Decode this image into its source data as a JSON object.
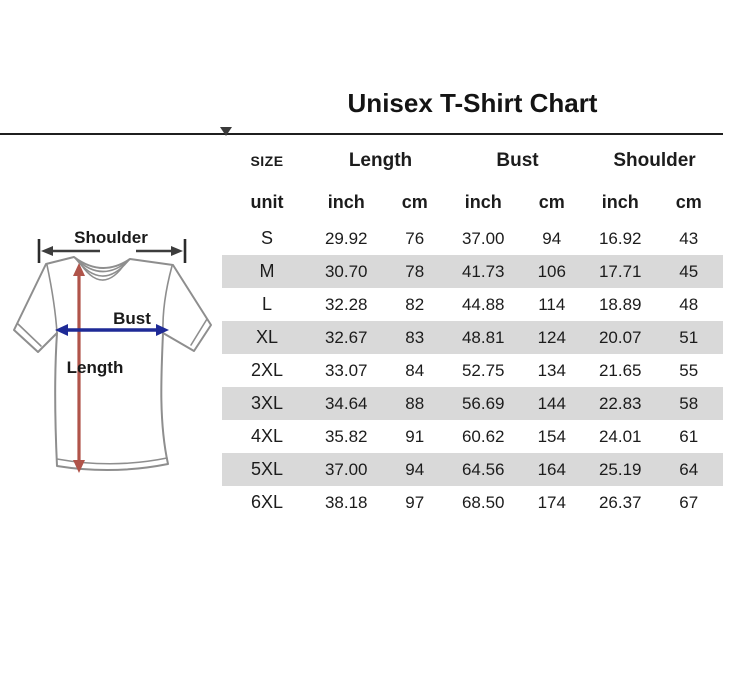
{
  "title": "Unisex T-Shirt Chart",
  "diagram": {
    "shoulder_label": "Shoulder",
    "bust_label": "Bust",
    "length_label": "Length",
    "arrow_colors": {
      "length": "#b0544a",
      "bust": "#1e2a96",
      "shoulder": "#3d3d3d"
    }
  },
  "table": {
    "zebra_color": "#d9d9d9",
    "column_groups": [
      {
        "label": "SIZE",
        "span": 1
      },
      {
        "label": "Length",
        "span": 2
      },
      {
        "label": "Bust",
        "span": 2
      },
      {
        "label": "Shoulder",
        "span": 2
      }
    ],
    "unit_row": [
      "unit",
      "inch",
      "cm",
      "inch",
      "cm",
      "inch",
      "cm"
    ],
    "rows": [
      {
        "size": "S",
        "values": [
          "29.92",
          "76",
          "37.00",
          "94",
          "16.92",
          "43"
        ]
      },
      {
        "size": "M",
        "values": [
          "30.70",
          "78",
          "41.73",
          "106",
          "17.71",
          "45"
        ]
      },
      {
        "size": "L",
        "values": [
          "32.28",
          "82",
          "44.88",
          "114",
          "18.89",
          "48"
        ]
      },
      {
        "size": "XL",
        "values": [
          "32.67",
          "83",
          "48.81",
          "124",
          "20.07",
          "51"
        ]
      },
      {
        "size": "2XL",
        "values": [
          "33.07",
          "84",
          "52.75",
          "134",
          "21.65",
          "55"
        ]
      },
      {
        "size": "3XL",
        "values": [
          "34.64",
          "88",
          "56.69",
          "144",
          "22.83",
          "58"
        ]
      },
      {
        "size": "4XL",
        "values": [
          "35.82",
          "91",
          "60.62",
          "154",
          "24.01",
          "61"
        ]
      },
      {
        "size": "5XL",
        "values": [
          "37.00",
          "94",
          "64.56",
          "164",
          "25.19",
          "64"
        ]
      },
      {
        "size": "6XL",
        "values": [
          "38.18",
          "97",
          "68.50",
          "174",
          "26.37",
          "67"
        ]
      }
    ]
  },
  "chart_data": {
    "type": "table",
    "title": "Unisex T-Shirt Chart",
    "columns": [
      "SIZE",
      "Length (inch)",
      "Length (cm)",
      "Bust (inch)",
      "Bust (cm)",
      "Shoulder (inch)",
      "Shoulder (cm)"
    ],
    "rows": [
      [
        "S",
        29.92,
        76,
        37.0,
        94,
        16.92,
        43
      ],
      [
        "M",
        30.7,
        78,
        41.73,
        106,
        17.71,
        45
      ],
      [
        "L",
        32.28,
        82,
        44.88,
        114,
        18.89,
        48
      ],
      [
        "XL",
        32.67,
        83,
        48.81,
        124,
        20.07,
        51
      ],
      [
        "2XL",
        33.07,
        84,
        52.75,
        134,
        21.65,
        55
      ],
      [
        "3XL",
        34.64,
        88,
        56.69,
        144,
        22.83,
        58
      ],
      [
        "4XL",
        35.82,
        91,
        60.62,
        154,
        24.01,
        61
      ],
      [
        "5XL",
        37.0,
        94,
        64.56,
        164,
        25.19,
        64
      ],
      [
        "6XL",
        38.18,
        97,
        68.5,
        174,
        26.37,
        67
      ]
    ]
  }
}
